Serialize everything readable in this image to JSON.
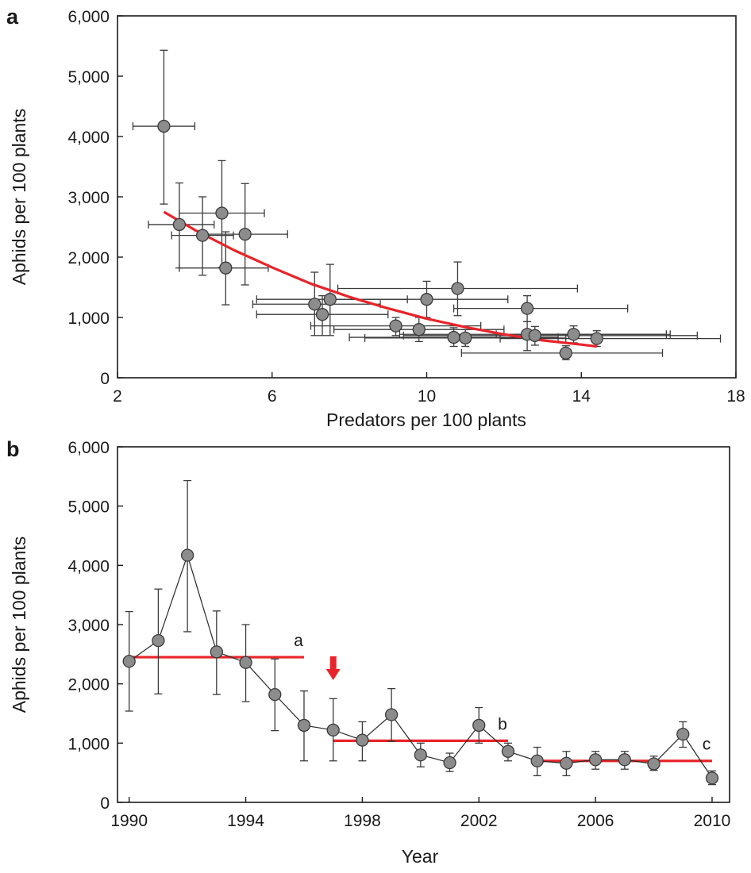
{
  "figure": {
    "panel_a_letter": "a",
    "panel_b_letter": "b"
  },
  "colors": {
    "fit_line": "#e8242a",
    "marker_fill": "#8c8c8c",
    "marker_stroke": "#3a3a3a",
    "error_bar": "#3a3a3a",
    "axis": "#1a1a1a",
    "arrow": "#e8242a"
  },
  "chart_data": [
    {
      "type": "scatter",
      "panel": "a",
      "title": "",
      "xlabel": "Predators per 100 plants",
      "ylabel": "Aphids per 100 plants",
      "xlim": [
        2,
        18
      ],
      "ylim": [
        0,
        6000
      ],
      "x_ticks": [
        2,
        6,
        10,
        14,
        18
      ],
      "y_ticks": [
        0,
        1000,
        2000,
        3000,
        4000,
        5000,
        6000
      ],
      "x_tick_labels": [
        "2",
        "6",
        "10",
        "14",
        "18"
      ],
      "y_tick_labels": [
        "0",
        "1,000",
        "2,000",
        "3,000",
        "4,000",
        "5,000",
        "6,000"
      ],
      "grid": false,
      "points": [
        {
          "x": 3.2,
          "y": 4170,
          "xerr": [
            2.4,
            4.0
          ],
          "yerr": [
            2880,
            5430
          ]
        },
        {
          "x": 3.6,
          "y": 2540,
          "xerr": [
            2.8,
            4.5
          ],
          "yerr": [
            1820,
            3230
          ]
        },
        {
          "x": 4.2,
          "y": 2360,
          "xerr": [
            3.4,
            5.0
          ],
          "yerr": [
            1700,
            3000
          ]
        },
        {
          "x": 4.7,
          "y": 2730,
          "xerr": [
            3.6,
            5.8
          ],
          "yerr": [
            1830,
            3600
          ]
        },
        {
          "x": 5.3,
          "y": 2380,
          "xerr": [
            4.3,
            6.4
          ],
          "yerr": [
            1540,
            3220
          ]
        },
        {
          "x": 4.8,
          "y": 1820,
          "xerr": [
            3.6,
            5.9
          ],
          "yerr": [
            1210,
            2420
          ]
        },
        {
          "x": 7.5,
          "y": 1300,
          "xerr": [
            5.6,
            9.5
          ],
          "yerr": [
            700,
            1880
          ]
        },
        {
          "x": 7.1,
          "y": 1220,
          "xerr": [
            5.5,
            8.8
          ],
          "yerr": [
            700,
            1750
          ]
        },
        {
          "x": 7.3,
          "y": 1050,
          "xerr": [
            5.6,
            9.0
          ],
          "yerr": [
            700,
            1360
          ]
        },
        {
          "x": 10.8,
          "y": 1480,
          "xerr": [
            7.7,
            13.9
          ],
          "yerr": [
            1030,
            1920
          ]
        },
        {
          "x": 10.0,
          "y": 1300,
          "xerr": [
            7.5,
            12.1
          ],
          "yerr": [
            1000,
            1600
          ]
        },
        {
          "x": 9.2,
          "y": 860,
          "xerr": [
            7.0,
            11.4
          ],
          "yerr": [
            700,
            1000
          ]
        },
        {
          "x": 9.8,
          "y": 800,
          "xerr": [
            7.6,
            12.0
          ],
          "yerr": [
            600,
            1000
          ]
        },
        {
          "x": 10.7,
          "y": 670,
          "xerr": [
            8.0,
            13.4
          ],
          "yerr": [
            520,
            830
          ]
        },
        {
          "x": 11.0,
          "y": 660,
          "xerr": [
            8.4,
            13.6
          ],
          "yerr": [
            520,
            800
          ]
        },
        {
          "x": 12.6,
          "y": 1150,
          "xerr": [
            10.7,
            15.2
          ],
          "yerr": [
            930,
            1360
          ]
        },
        {
          "x": 12.6,
          "y": 720,
          "xerr": [
            9.3,
            16.3
          ],
          "yerr": [
            450,
            930
          ]
        },
        {
          "x": 12.8,
          "y": 700,
          "xerr": [
            9.4,
            17.0
          ],
          "yerr": [
            540,
            850
          ]
        },
        {
          "x": 13.6,
          "y": 410,
          "xerr": [
            10.9,
            16.1
          ],
          "yerr": [
            300,
            530
          ]
        },
        {
          "x": 13.8,
          "y": 720,
          "xerr": [
            11.8,
            16.2
          ],
          "yerr": [
            580,
            860
          ]
        },
        {
          "x": 14.4,
          "y": 650,
          "xerr": [
            11.9,
            17.6
          ],
          "yerr": [
            520,
            780
          ]
        }
      ],
      "fit_line": {
        "x": [
          3.2,
          4.0,
          5.0,
          6.0,
          7.0,
          8.0,
          9.0,
          10.0,
          11.0,
          12.0,
          13.0,
          14.0,
          14.4
        ],
        "y": [
          2750,
          2450,
          2120,
          1830,
          1560,
          1340,
          1150,
          980,
          840,
          720,
          620,
          550,
          520
        ]
      }
    },
    {
      "type": "line",
      "panel": "b",
      "title": "",
      "xlabel": "Year",
      "ylabel": "Aphids per 100 plants",
      "xlim": [
        1989.6,
        2010.6
      ],
      "ylim": [
        0,
        6000
      ],
      "x_ticks": [
        1990,
        1994,
        1998,
        2002,
        2006,
        2010
      ],
      "y_ticks": [
        0,
        1000,
        2000,
        3000,
        4000,
        5000,
        6000
      ],
      "x_tick_labels": [
        "1990",
        "1994",
        "1998",
        "2002",
        "2006",
        "2010"
      ],
      "y_tick_labels": [
        "0",
        "1,000",
        "2,000",
        "3,000",
        "4,000",
        "5,000",
        "6,000"
      ],
      "grid": false,
      "series": [
        {
          "x": [
            1990,
            1991,
            1992,
            1993,
            1994,
            1995,
            1996,
            1997,
            1998,
            1999,
            2000,
            2001,
            2002,
            2003,
            2004,
            2005,
            2006,
            2007,
            2008,
            2009,
            2010
          ],
          "y": [
            2380,
            2730,
            4170,
            2540,
            2360,
            1820,
            1300,
            1220,
            1050,
            1480,
            800,
            670,
            1300,
            860,
            700,
            660,
            720,
            720,
            650,
            1150,
            410
          ],
          "yerr_low": [
            1540,
            1830,
            2880,
            1820,
            1700,
            1210,
            700,
            700,
            700,
            1030,
            600,
            520,
            1000,
            700,
            450,
            450,
            560,
            560,
            540,
            930,
            300
          ],
          "yerr_high": [
            3220,
            3600,
            5430,
            3230,
            3000,
            2420,
            1880,
            1750,
            1360,
            1920,
            1000,
            830,
            1600,
            1000,
            930,
            860,
            860,
            860,
            780,
            1360,
            530
          ]
        }
      ],
      "means": [
        {
          "label": "a",
          "x_start": 1990,
          "x_end": 1996,
          "y": 2450
        },
        {
          "label": "b",
          "x_start": 1997,
          "x_end": 2003,
          "y": 1040
        },
        {
          "label": "c",
          "x_start": 2004,
          "x_end": 2010,
          "y": 700
        }
      ],
      "arrow_at_x": 1997
    }
  ]
}
